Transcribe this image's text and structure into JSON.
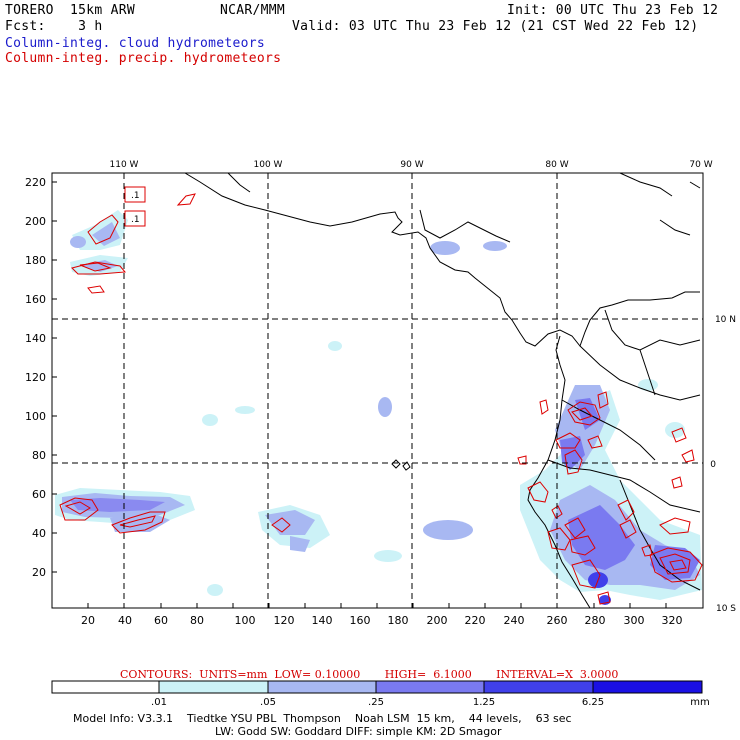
{
  "header": {
    "line1_left": "TORERO  15km ARW",
    "line1_mid": "NCAR/MMM",
    "line1_right": "Init: 00 UTC Thu 23 Feb 12",
    "line2_left": "Fcst:    3 h",
    "line2_right": "Valid: 03 UTC Thu 23 Feb 12 (21 CST Wed 22 Feb 12)",
    "field1": "Column-integ. cloud hydrometeors",
    "field2": "Column-integ. precip. hydrometeors"
  },
  "map": {
    "lon_labels": [
      "110 W",
      "100 W",
      "90 W",
      "80 W",
      "70 W"
    ],
    "lat_labels": [
      "10 N",
      "0",
      "10 S"
    ],
    "x_ticks": [
      "20",
      "40",
      "60",
      "80",
      "100",
      "120",
      "140",
      "160",
      "180",
      "200",
      "220",
      "240",
      "260",
      "280",
      "300",
      "320"
    ],
    "y_ticks": [
      "20",
      "40",
      "60",
      "80",
      "100",
      "120",
      "140",
      "160",
      "180",
      "200",
      "220"
    ],
    "box_labels": [
      ".1",
      ".1"
    ]
  },
  "contour_info": "CONTOURS:  UNITS=mm  LOW= 0.10000       HIGH=  6.1000       INTERVAL=X  3.0000",
  "colorbar": {
    "labels": [
      ".01",
      ".05",
      ".25",
      "1.25",
      "6.25"
    ],
    "units": "mm",
    "colors": [
      "#ffffff",
      "#ccf2f7",
      "#a8b8f2",
      "#7a7af0",
      "#4040ea",
      "#1a10e4"
    ]
  },
  "model_info": {
    "line1": "Model Info: V3.3.1    Tiedtke YSU PBL  Thompson    Noah LSM  15 km,    44 levels,    63 sec",
    "line2": "LW: Godd SW: Goddard DIFF: simple KM: 2D Smagor"
  }
}
